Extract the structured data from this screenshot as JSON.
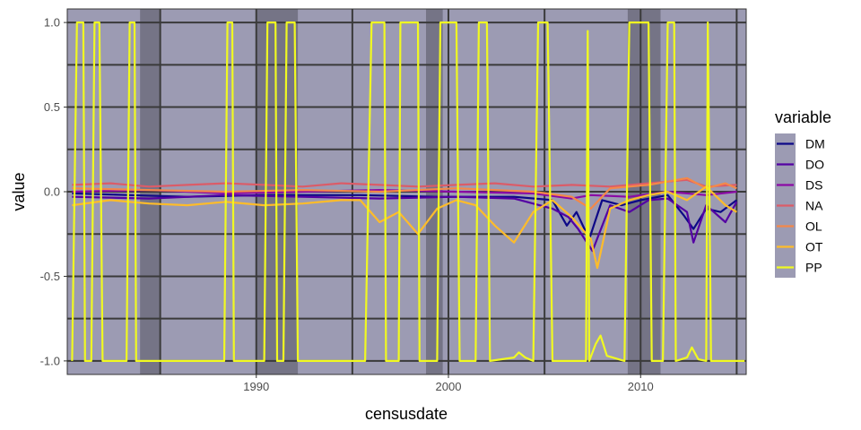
{
  "chart_data": {
    "type": "line",
    "xlabel": "censusdate",
    "ylabel": "value",
    "xlim": [
      "1980-03-01",
      "2015-07-01"
    ],
    "ylim": [
      -1.08,
      1.08
    ],
    "x_ticks": [
      {
        "date": "1990-01-01",
        "label": "1990"
      },
      {
        "date": "2000-01-01",
        "label": "2000"
      },
      {
        "date": "2010-01-01",
        "label": "2010"
      }
    ],
    "y_ticks": [
      {
        "value": 1.0,
        "label": "1.0"
      },
      {
        "value": 0.5,
        "label": "0.5"
      },
      {
        "value": 0.0,
        "label": "0.0"
      },
      {
        "value": -0.5,
        "label": "-0.5"
      },
      {
        "value": -1.0,
        "label": "-1.0"
      }
    ],
    "grid": true,
    "panel_background": "#9c9bb3",
    "grid_color": "#3a3a3a",
    "vertical_reference_lines": [
      "1985-01-01",
      "1990-01-01",
      "1995-01-01",
      "2000-01-01",
      "2005-01-01",
      "2010-01-01",
      "2015-01-01"
    ],
    "shaded_periods": [
      {
        "start": "1983-12-15",
        "end": "1985-01-01"
      },
      {
        "start": "1990-01-01",
        "end": "1992-03-01"
      },
      {
        "start": "1998-11-01",
        "end": "1999-09-15"
      },
      {
        "start": "2009-05-01",
        "end": "2011-01-15"
      }
    ],
    "shade_color": "#6e6d7e",
    "legend": {
      "title": "variable",
      "position": "right"
    },
    "series": [
      {
        "name": "DM",
        "color": "#0d0887",
        "points": [
          [
            "1980-06-01",
            -0.01
          ],
          [
            "1983-06-01",
            -0.02
          ],
          [
            "1986-06-01",
            -0.03
          ],
          [
            "1990-06-01",
            -0.02
          ],
          [
            "1995-06-01",
            -0.02
          ],
          [
            "1999-06-01",
            -0.03
          ],
          [
            "2003-06-01",
            -0.03
          ],
          [
            "2005-06-01",
            -0.05
          ],
          [
            "2006-03-01",
            -0.2
          ],
          [
            "2006-09-01",
            -0.12
          ],
          [
            "2007-05-01",
            -0.28
          ],
          [
            "2008-01-01",
            -0.05
          ],
          [
            "2009-01-01",
            -0.08
          ],
          [
            "2010-01-01",
            -0.05
          ],
          [
            "2011-06-01",
            -0.02
          ],
          [
            "2012-04-01",
            -0.14
          ],
          [
            "2012-10-01",
            -0.22
          ],
          [
            "2013-06-01",
            -0.1
          ],
          [
            "2014-03-01",
            -0.12
          ],
          [
            "2015-01-01",
            -0.05
          ]
        ]
      },
      {
        "name": "DO",
        "color": "#5402a3",
        "points": [
          [
            "1980-06-01",
            -0.03
          ],
          [
            "1984-06-01",
            -0.04
          ],
          [
            "1988-06-01",
            -0.02
          ],
          [
            "1992-06-01",
            -0.03
          ],
          [
            "1996-06-01",
            -0.04
          ],
          [
            "2000-06-01",
            -0.03
          ],
          [
            "2003-06-01",
            -0.04
          ],
          [
            "2005-06-01",
            -0.1
          ],
          [
            "2006-04-01",
            -0.15
          ],
          [
            "2006-10-01",
            -0.22
          ],
          [
            "2007-07-01",
            -0.35
          ],
          [
            "2008-06-01",
            -0.08
          ],
          [
            "2009-06-01",
            -0.12
          ],
          [
            "2010-06-01",
            -0.05
          ],
          [
            "2011-06-01",
            -0.04
          ],
          [
            "2012-06-01",
            -0.12
          ],
          [
            "2012-10-01",
            -0.3
          ],
          [
            "2013-06-01",
            -0.08
          ],
          [
            "2014-06-01",
            -0.18
          ],
          [
            "2015-01-01",
            -0.06
          ]
        ]
      },
      {
        "name": "DS",
        "color": "#8b0aa5",
        "points": [
          [
            "1980-06-01",
            0.0
          ],
          [
            "1984-06-01",
            0.01
          ],
          [
            "1988-06-01",
            -0.01
          ],
          [
            "1992-06-01",
            0.0
          ],
          [
            "1996-06-01",
            0.01
          ],
          [
            "2000-06-01",
            0.0
          ],
          [
            "2004-06-01",
            -0.01
          ],
          [
            "2006-06-01",
            -0.04
          ],
          [
            "2007-06-01",
            -0.02
          ],
          [
            "2009-06-01",
            -0.03
          ],
          [
            "2011-06-01",
            0.0
          ],
          [
            "2013-06-01",
            -0.02
          ],
          [
            "2015-01-01",
            0.0
          ]
        ]
      },
      {
        "name": "NA",
        "color": "#db5c68",
        "points": [
          [
            "1980-06-01",
            0.04
          ],
          [
            "1982-06-01",
            0.05
          ],
          [
            "1984-06-01",
            0.03
          ],
          [
            "1986-06-01",
            0.04
          ],
          [
            "1988-06-01",
            0.05
          ],
          [
            "1990-06-01",
            0.04
          ],
          [
            "1992-06-01",
            0.03
          ],
          [
            "1994-06-01",
            0.05
          ],
          [
            "1996-06-01",
            0.04
          ],
          [
            "1998-06-01",
            0.03
          ],
          [
            "2000-06-01",
            0.04
          ],
          [
            "2002-06-01",
            0.05
          ],
          [
            "2004-06-01",
            0.03
          ],
          [
            "2006-06-01",
            0.04
          ],
          [
            "2008-06-01",
            0.03
          ],
          [
            "2010-06-01",
            0.05
          ],
          [
            "2012-06-01",
            0.07
          ],
          [
            "2013-06-01",
            0.03
          ],
          [
            "2015-01-01",
            0.04
          ]
        ]
      },
      {
        "name": "OL",
        "color": "#f48849",
        "points": [
          [
            "1980-06-01",
            0.02
          ],
          [
            "1984-06-01",
            0.01
          ],
          [
            "1988-06-01",
            0.0
          ],
          [
            "1992-06-01",
            0.01
          ],
          [
            "1996-06-01",
            0.0
          ],
          [
            "2000-06-01",
            0.02
          ],
          [
            "2004-06-01",
            0.0
          ],
          [
            "2006-06-01",
            -0.03
          ],
          [
            "2007-06-01",
            -0.1
          ],
          [
            "2008-06-01",
            0.02
          ],
          [
            "2010-06-01",
            0.04
          ],
          [
            "2012-06-01",
            0.08
          ],
          [
            "2013-06-01",
            0.02
          ],
          [
            "2014-06-01",
            0.05
          ],
          [
            "2015-01-01",
            0.02
          ]
        ]
      },
      {
        "name": "OT",
        "color": "#febc2a",
        "points": [
          [
            "1980-06-01",
            -0.08
          ],
          [
            "1982-06-01",
            -0.05
          ],
          [
            "1984-06-01",
            -0.07
          ],
          [
            "1986-06-01",
            -0.08
          ],
          [
            "1988-06-01",
            -0.06
          ],
          [
            "1990-06-01",
            -0.08
          ],
          [
            "1992-06-01",
            -0.07
          ],
          [
            "1994-06-01",
            -0.05
          ],
          [
            "1995-06-01",
            -0.05
          ],
          [
            "1996-06-01",
            -0.18
          ],
          [
            "1997-06-01",
            -0.12
          ],
          [
            "1998-06-01",
            -0.25
          ],
          [
            "1999-06-01",
            -0.1
          ],
          [
            "2000-06-01",
            -0.05
          ],
          [
            "2001-06-01",
            -0.08
          ],
          [
            "2002-06-01",
            -0.2
          ],
          [
            "2003-06-01",
            -0.3
          ],
          [
            "2004-06-01",
            -0.12
          ],
          [
            "2005-06-01",
            -0.05
          ],
          [
            "2006-06-01",
            -0.15
          ],
          [
            "2007-06-01",
            -0.28
          ],
          [
            "2007-10-01",
            -0.45
          ],
          [
            "2008-06-01",
            -0.1
          ],
          [
            "2009-06-01",
            -0.05
          ],
          [
            "2010-06-01",
            -0.02
          ],
          [
            "2011-06-01",
            0.0
          ],
          [
            "2012-06-01",
            -0.05
          ],
          [
            "2013-06-01",
            0.03
          ],
          [
            "2014-06-01",
            -0.08
          ],
          [
            "2015-01-01",
            -0.12
          ]
        ]
      },
      {
        "name": "PP",
        "color": "#f0f921",
        "points": [
          [
            "1980-06-01",
            -1.0
          ],
          [
            "1980-09-01",
            1.0
          ],
          [
            "1981-01-01",
            1.0
          ],
          [
            "1981-02-01",
            -1.0
          ],
          [
            "1981-06-01",
            -1.0
          ],
          [
            "1981-08-01",
            1.0
          ],
          [
            "1981-11-01",
            1.0
          ],
          [
            "1982-01-01",
            -1.0
          ],
          [
            "1983-04-01",
            -1.0
          ],
          [
            "1983-06-01",
            1.0
          ],
          [
            "1983-09-01",
            1.0
          ],
          [
            "1983-10-01",
            -1.0
          ],
          [
            "1986-01-01",
            -1.0
          ],
          [
            "1988-05-01",
            -1.0
          ],
          [
            "1988-07-01",
            1.0
          ],
          [
            "1988-10-01",
            1.0
          ],
          [
            "1988-11-01",
            -1.0
          ],
          [
            "1990-06-01",
            -1.0
          ],
          [
            "1990-08-01",
            1.0
          ],
          [
            "1991-01-01",
            1.0
          ],
          [
            "1991-02-01",
            -1.0
          ],
          [
            "1991-06-01",
            -1.0
          ],
          [
            "1991-08-01",
            1.0
          ],
          [
            "1992-01-01",
            1.0
          ],
          [
            "1992-03-01",
            -1.0
          ],
          [
            "1995-09-01",
            -1.0
          ],
          [
            "1996-01-01",
            1.0
          ],
          [
            "1996-09-01",
            1.0
          ],
          [
            "1996-10-01",
            -1.0
          ],
          [
            "1997-06-01",
            -1.0
          ],
          [
            "1997-07-01",
            1.0
          ],
          [
            "1998-06-01",
            1.0
          ],
          [
            "1998-07-01",
            -1.0
          ],
          [
            "1999-06-01",
            -1.0
          ],
          [
            "1999-08-01",
            1.0
          ],
          [
            "2000-06-01",
            1.0
          ],
          [
            "2000-08-01",
            -1.0
          ],
          [
            "2001-06-01",
            -1.0
          ],
          [
            "2001-08-01",
            1.0
          ],
          [
            "2002-01-01",
            1.0
          ],
          [
            "2002-03-01",
            -1.0
          ],
          [
            "2003-06-01",
            -0.98
          ],
          [
            "2003-09-01",
            -0.95
          ],
          [
            "2004-01-01",
            -0.98
          ],
          [
            "2004-06-01",
            -1.0
          ],
          [
            "2004-09-01",
            1.0
          ],
          [
            "2005-03-01",
            1.0
          ],
          [
            "2005-06-01",
            -1.0
          ],
          [
            "2007-03-01",
            -1.0
          ],
          [
            "2007-04-01",
            0.95
          ],
          [
            "2007-05-01",
            -1.0
          ],
          [
            "2007-09-01",
            -0.9
          ],
          [
            "2007-12-01",
            -0.85
          ],
          [
            "2008-04-01",
            -0.97
          ],
          [
            "2009-03-01",
            -1.0
          ],
          [
            "2009-06-01",
            1.0
          ],
          [
            "2010-06-01",
            1.0
          ],
          [
            "2010-08-01",
            -1.0
          ],
          [
            "2011-03-01",
            -1.0
          ],
          [
            "2011-06-01",
            1.0
          ],
          [
            "2011-10-01",
            1.0
          ],
          [
            "2011-11-01",
            -1.0
          ],
          [
            "2012-06-01",
            -0.98
          ],
          [
            "2012-09-01",
            -0.92
          ],
          [
            "2013-01-01",
            -0.99
          ],
          [
            "2013-06-01",
            -1.0
          ],
          [
            "2013-07-01",
            1.0
          ],
          [
            "2013-09-01",
            -1.0
          ],
          [
            "2015-06-01",
            -1.0
          ]
        ]
      }
    ]
  }
}
